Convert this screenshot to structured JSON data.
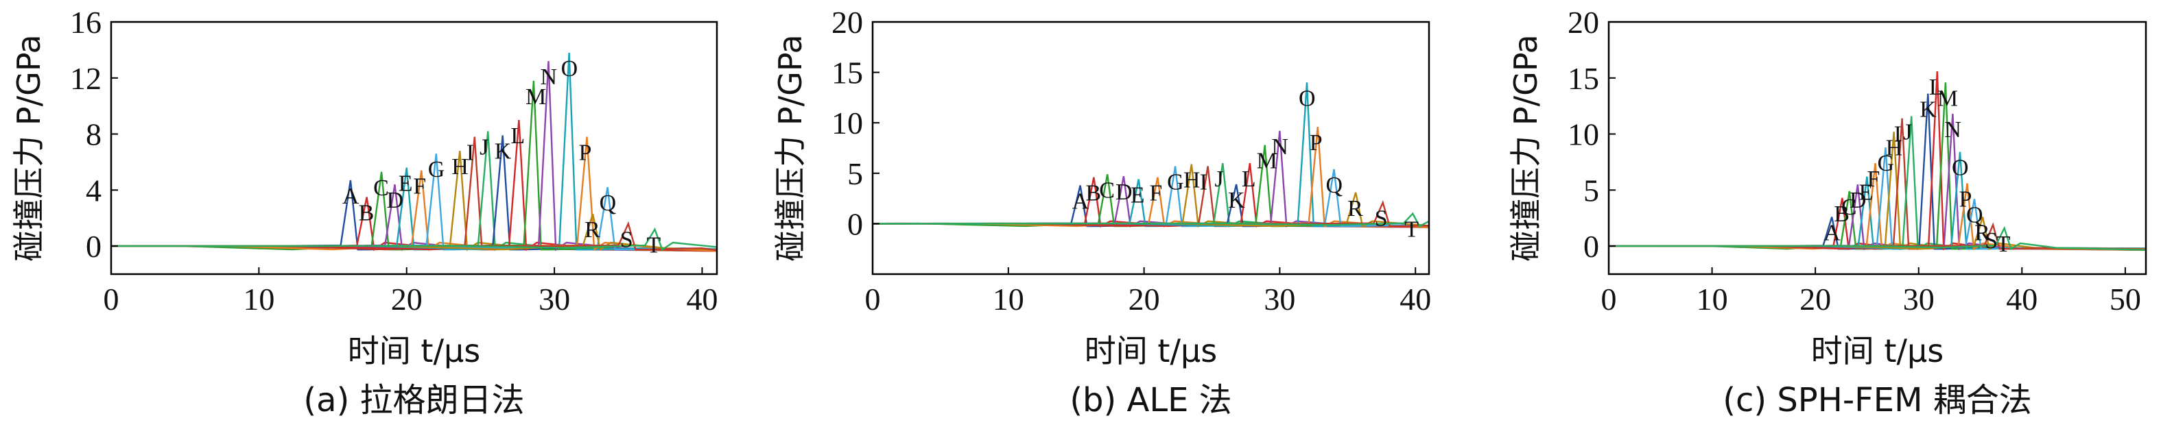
{
  "colors": [
    "#1f4ea1",
    "#d62728",
    "#2ca02c",
    "#8e44ad",
    "#17a2b8",
    "#e67e22",
    "#3fa7e0",
    "#b8860b",
    "#c0392b",
    "#27ae60"
  ],
  "chart_data": [
    {
      "type": "line",
      "caption": "(a) 拉格朗日法",
      "xlabel": "时间 t/μs",
      "ylabel": "碰撞压力 P/GPa",
      "xlim": [
        0,
        41
      ],
      "ylim": [
        -2,
        16
      ],
      "xticks": [
        0,
        10,
        20,
        30,
        40
      ],
      "yticks": [
        0,
        4,
        8,
        12,
        16
      ],
      "peaks": [
        {
          "name": "A",
          "t": 16.2,
          "p": 4.7
        },
        {
          "name": "B",
          "t": 17.3,
          "p": 3.5
        },
        {
          "name": "C",
          "t": 18.3,
          "p": 5.3
        },
        {
          "name": "D",
          "t": 19.2,
          "p": 4.4
        },
        {
          "name": "E",
          "t": 20.0,
          "p": 5.6
        },
        {
          "name": "F",
          "t": 21.0,
          "p": 5.4
        },
        {
          "name": "G",
          "t": 22.0,
          "p": 6.6
        },
        {
          "name": "H",
          "t": 23.6,
          "p": 6.8
        },
        {
          "name": "I",
          "t": 24.6,
          "p": 7.8
        },
        {
          "name": "J",
          "t": 25.5,
          "p": 8.2
        },
        {
          "name": "K",
          "t": 26.5,
          "p": 7.9
        },
        {
          "name": "L",
          "t": 27.6,
          "p": 9.0
        },
        {
          "name": "M",
          "t": 28.6,
          "p": 11.8
        },
        {
          "name": "N",
          "t": 29.6,
          "p": 13.2
        },
        {
          "name": "O",
          "t": 31.0,
          "p": 13.8
        },
        {
          "name": "P",
          "t": 32.2,
          "p": 7.8
        },
        {
          "name": "Q",
          "t": 33.6,
          "p": 4.2
        },
        {
          "name": "R",
          "t": 32.6,
          "p": 2.3
        },
        {
          "name": "S",
          "t": 35.0,
          "p": 1.6
        },
        {
          "name": "T",
          "t": 36.8,
          "p": 1.2
        }
      ]
    },
    {
      "type": "line",
      "caption": "(b) ALE 法",
      "xlabel": "时间 t/μs",
      "ylabel": "碰撞压力 P/GPa",
      "xlim": [
        0,
        41
      ],
      "ylim": [
        -5,
        20
      ],
      "xticks": [
        0,
        10,
        20,
        30,
        40
      ],
      "yticks": [
        0,
        5,
        10,
        15,
        20
      ],
      "peaks": [
        {
          "name": "A",
          "t": 15.3,
          "p": 3.8
        },
        {
          "name": "B",
          "t": 16.3,
          "p": 4.6
        },
        {
          "name": "C",
          "t": 17.3,
          "p": 4.9
        },
        {
          "name": "D",
          "t": 18.5,
          "p": 4.7
        },
        {
          "name": "E",
          "t": 19.6,
          "p": 4.4
        },
        {
          "name": "F",
          "t": 21.0,
          "p": 4.6
        },
        {
          "name": "G",
          "t": 22.3,
          "p": 5.7
        },
        {
          "name": "H",
          "t": 23.5,
          "p": 5.9
        },
        {
          "name": "I",
          "t": 24.7,
          "p": 5.7
        },
        {
          "name": "J",
          "t": 25.8,
          "p": 6.0
        },
        {
          "name": "K",
          "t": 26.8,
          "p": 3.9
        },
        {
          "name": "L",
          "t": 27.8,
          "p": 6.0
        },
        {
          "name": "M",
          "t": 28.9,
          "p": 7.8
        },
        {
          "name": "N",
          "t": 30.0,
          "p": 9.2
        },
        {
          "name": "O",
          "t": 32.0,
          "p": 14.0
        },
        {
          "name": "P",
          "t": 32.8,
          "p": 9.6
        },
        {
          "name": "Q",
          "t": 34.0,
          "p": 5.4
        },
        {
          "name": "R",
          "t": 35.6,
          "p": 3.1
        },
        {
          "name": "S",
          "t": 37.6,
          "p": 2.1
        },
        {
          "name": "T",
          "t": 39.8,
          "p": 1.0
        }
      ]
    },
    {
      "type": "line",
      "caption": "(c) SPH-FEM 耦合法",
      "xlabel": "时间 t/μs",
      "ylabel": "碰撞压力 P/GPa",
      "xlim": [
        0,
        52
      ],
      "ylim": [
        -2.5,
        20
      ],
      "xticks": [
        0,
        10,
        20,
        30,
        40,
        50
      ],
      "yticks": [
        0,
        5,
        10,
        15,
        20
      ],
      "peaks": [
        {
          "name": "A",
          "t": 21.6,
          "p": 2.6
        },
        {
          "name": "B",
          "t": 22.6,
          "p": 4.3
        },
        {
          "name": "C",
          "t": 23.3,
          "p": 4.9
        },
        {
          "name": "D",
          "t": 24.1,
          "p": 5.5
        },
        {
          "name": "E",
          "t": 25.0,
          "p": 6.2
        },
        {
          "name": "F",
          "t": 25.8,
          "p": 7.4
        },
        {
          "name": "G",
          "t": 26.8,
          "p": 8.8
        },
        {
          "name": "H",
          "t": 27.6,
          "p": 10.2
        },
        {
          "name": "I",
          "t": 28.4,
          "p": 11.4
        },
        {
          "name": "J",
          "t": 29.3,
          "p": 11.6
        },
        {
          "name": "K",
          "t": 30.9,
          "p": 13.6
        },
        {
          "name": "L",
          "t": 31.8,
          "p": 15.6
        },
        {
          "name": "M",
          "t": 32.6,
          "p": 14.6
        },
        {
          "name": "N",
          "t": 33.3,
          "p": 11.8
        },
        {
          "name": "O",
          "t": 34.0,
          "p": 8.4
        },
        {
          "name": "P",
          "t": 34.7,
          "p": 5.6
        },
        {
          "name": "Q",
          "t": 35.4,
          "p": 4.2
        },
        {
          "name": "R",
          "t": 36.2,
          "p": 2.6
        },
        {
          "name": "S",
          "t": 37.2,
          "p": 1.9
        },
        {
          "name": "T",
          "t": 38.3,
          "p": 1.6
        }
      ]
    }
  ]
}
